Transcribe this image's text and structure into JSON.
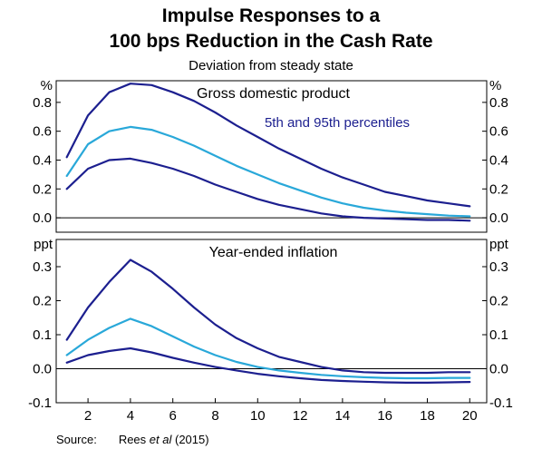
{
  "title_line1": "Impulse Responses to a",
  "title_line2": "100 bps Reduction in the Cash Rate",
  "subtitle": "Deviation from steady state",
  "source_label": "Source:",
  "source_author": "Rees",
  "source_etal": "et al",
  "source_year": "(2015)",
  "colors": {
    "dark": "#1c1f8f",
    "light": "#29a8d9"
  },
  "chart_data": [
    {
      "type": "line",
      "title": "Gross domestic product",
      "annotation": "5th and 95th percentiles",
      "y_unit": "%",
      "ylim": [
        -0.1,
        0.95
      ],
      "yticks": [
        0.0,
        0.2,
        0.4,
        0.6,
        0.8
      ],
      "ytick_labels": [
        "0.0",
        "0.2",
        "0.4",
        "0.6",
        "0.8"
      ],
      "x": [
        1,
        2,
        3,
        4,
        5,
        6,
        7,
        8,
        9,
        10,
        11,
        12,
        13,
        14,
        15,
        16,
        17,
        18,
        19,
        20
      ],
      "series": [
        {
          "role": "upper",
          "color": "#1c1f8f",
          "values": [
            0.42,
            0.71,
            0.87,
            0.93,
            0.92,
            0.87,
            0.81,
            0.73,
            0.64,
            0.56,
            0.48,
            0.41,
            0.34,
            0.28,
            0.23,
            0.18,
            0.15,
            0.12,
            0.1,
            0.08
          ]
        },
        {
          "role": "median",
          "color": "#29a8d9",
          "values": [
            0.29,
            0.51,
            0.6,
            0.63,
            0.61,
            0.56,
            0.5,
            0.43,
            0.36,
            0.3,
            0.24,
            0.19,
            0.14,
            0.1,
            0.07,
            0.05,
            0.035,
            0.025,
            0.015,
            0.01
          ]
        },
        {
          "role": "lower",
          "color": "#1c1f8f",
          "values": [
            0.2,
            0.34,
            0.4,
            0.41,
            0.38,
            0.34,
            0.29,
            0.23,
            0.18,
            0.13,
            0.09,
            0.06,
            0.03,
            0.01,
            0.0,
            -0.005,
            -0.01,
            -0.015,
            -0.015,
            -0.02
          ]
        }
      ]
    },
    {
      "type": "line",
      "title": "Year-ended inflation",
      "y_unit": "ppt",
      "ylim": [
        -0.1,
        0.38
      ],
      "yticks": [
        -0.1,
        0.0,
        0.1,
        0.2,
        0.3
      ],
      "ytick_labels": [
        "-0.1",
        "0.0",
        "0.1",
        "0.2",
        "0.3"
      ],
      "x": [
        1,
        2,
        3,
        4,
        5,
        6,
        7,
        8,
        9,
        10,
        11,
        12,
        13,
        14,
        15,
        16,
        17,
        18,
        19,
        20
      ],
      "xticks": [
        2,
        4,
        6,
        8,
        10,
        12,
        14,
        16,
        18,
        20
      ],
      "series": [
        {
          "role": "upper",
          "color": "#1c1f8f",
          "values": [
            0.085,
            0.18,
            0.255,
            0.32,
            0.285,
            0.235,
            0.18,
            0.13,
            0.09,
            0.06,
            0.035,
            0.02,
            0.005,
            -0.005,
            -0.01,
            -0.012,
            -0.012,
            -0.012,
            -0.01,
            -0.01
          ]
        },
        {
          "role": "median",
          "color": "#29a8d9",
          "values": [
            0.04,
            0.085,
            0.12,
            0.147,
            0.125,
            0.095,
            0.065,
            0.04,
            0.02,
            0.005,
            -0.005,
            -0.012,
            -0.018,
            -0.022,
            -0.025,
            -0.027,
            -0.028,
            -0.028,
            -0.027,
            -0.027
          ]
        },
        {
          "role": "lower",
          "color": "#1c1f8f",
          "values": [
            0.018,
            0.04,
            0.052,
            0.06,
            0.048,
            0.032,
            0.018,
            0.005,
            -0.005,
            -0.015,
            -0.022,
            -0.028,
            -0.033,
            -0.036,
            -0.038,
            -0.04,
            -0.041,
            -0.041,
            -0.04,
            -0.039
          ]
        }
      ]
    }
  ]
}
